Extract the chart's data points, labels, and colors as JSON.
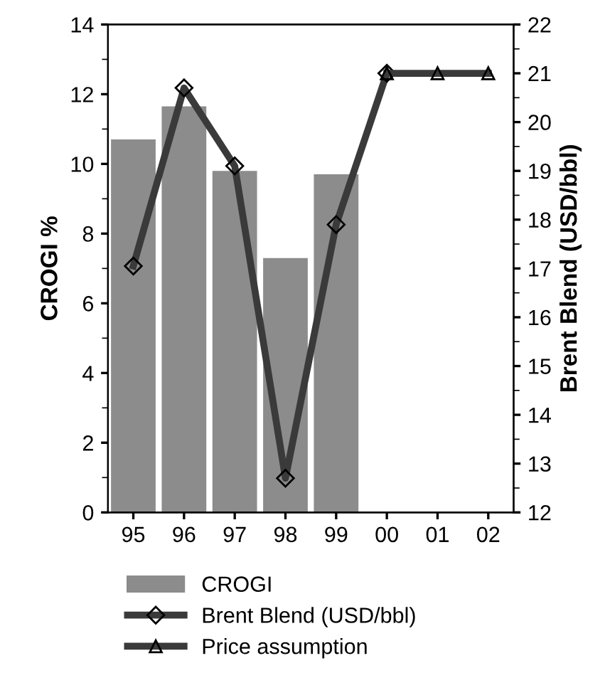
{
  "chart_data": {
    "type": "bar",
    "ylabel": "CROGI %",
    "y2label": "Brent Blend (USD/bbl)",
    "categories": [
      "95",
      "96",
      "97",
      "98",
      "99",
      "00",
      "01",
      "02"
    ],
    "series": [
      {
        "name": "CROGI",
        "color": "#8c8c8c",
        "values": [
          10.7,
          11.65,
          9.8,
          7.3,
          9.7,
          null,
          null,
          null
        ]
      },
      {
        "name": "Brent Blend (USD/bbl)",
        "type": "line",
        "axis": "y2",
        "color": "#3a3a3a",
        "marker": "diamond",
        "values": [
          17.05,
          20.7,
          19.1,
          12.7,
          17.9,
          21,
          null,
          null
        ]
      },
      {
        "name": "Price assumption",
        "type": "line",
        "axis": "y2",
        "color": "#3a3a3a",
        "marker": "triangle",
        "values": [
          null,
          null,
          null,
          null,
          null,
          21,
          21,
          21
        ]
      }
    ],
    "ylim": [
      0,
      14
    ],
    "yticks": [
      0,
      2,
      4,
      6,
      8,
      10,
      12,
      14
    ],
    "y2lim": [
      12,
      22
    ],
    "y2ticks": [
      12,
      13,
      14,
      15,
      16,
      17,
      18,
      19,
      20,
      21,
      22
    ],
    "grid": false,
    "legend": "bottom"
  }
}
